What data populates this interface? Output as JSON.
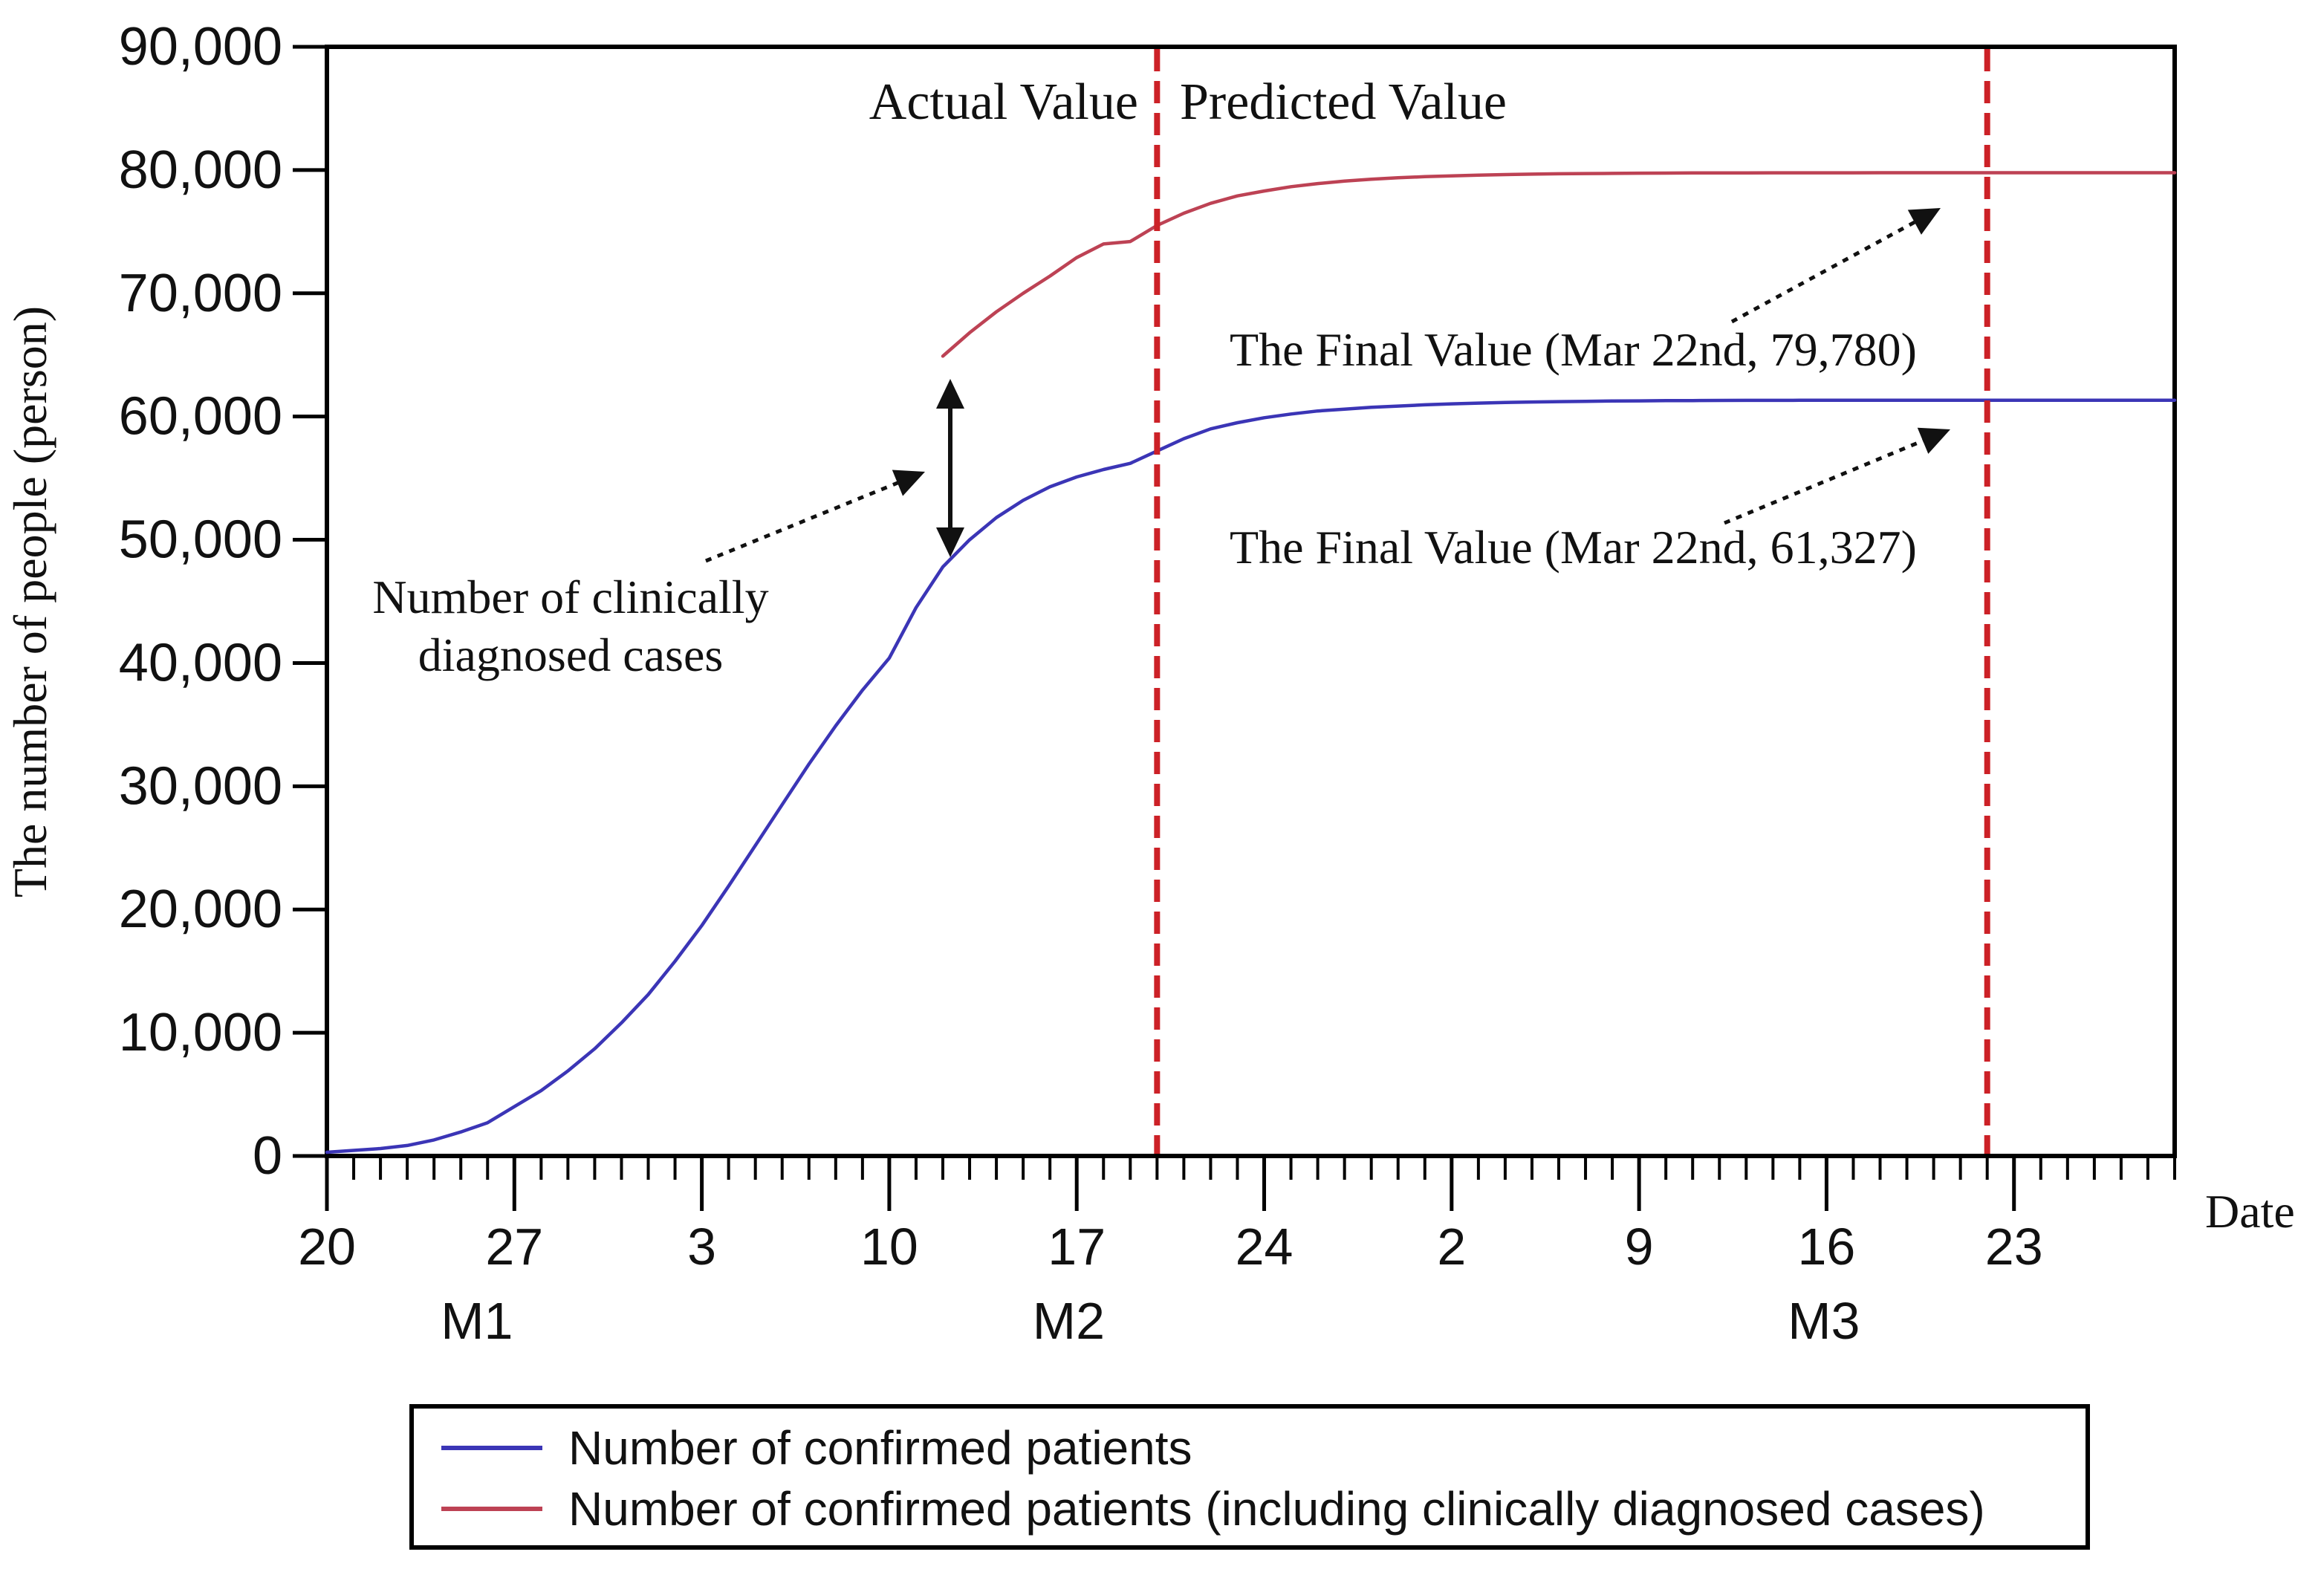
{
  "y_axis": {
    "title": "The number of people (person)",
    "ticks": [
      {
        "value": 0,
        "label": "0"
      },
      {
        "value": 10000,
        "label": "10,000"
      },
      {
        "value": 20000,
        "label": "20,000"
      },
      {
        "value": 30000,
        "label": "30,000"
      },
      {
        "value": 40000,
        "label": "40,000"
      },
      {
        "value": 50000,
        "label": "50,000"
      },
      {
        "value": 60000,
        "label": "60,000"
      },
      {
        "value": 70000,
        "label": "70,000"
      },
      {
        "value": 80000,
        "label": "80,000"
      },
      {
        "value": 90000,
        "label": "90,000"
      }
    ]
  },
  "x_axis": {
    "title": "Date",
    "major_ticks": [
      {
        "day": 0,
        "label": "20"
      },
      {
        "day": 7,
        "label": "27"
      },
      {
        "day": 14,
        "label": "3"
      },
      {
        "day": 21,
        "label": "10"
      },
      {
        "day": 28,
        "label": "17"
      },
      {
        "day": 35,
        "label": "24"
      },
      {
        "day": 42,
        "label": "2"
      },
      {
        "day": 49,
        "label": "9"
      },
      {
        "day": 56,
        "label": "16"
      },
      {
        "day": 63,
        "label": "23"
      }
    ],
    "minor_ticks": {
      "from_day": 0,
      "to_day": 69,
      "step": 1
    },
    "month_labels": [
      {
        "label": "M1",
        "day": 5.6
      },
      {
        "label": "M2",
        "day": 27.7
      },
      {
        "label": "M3",
        "day": 55.9
      }
    ]
  },
  "phase_labels": {
    "left": "Actual Value",
    "right": "Predicted Value"
  },
  "annotations": {
    "clinical_note_line1": "Number of clinically",
    "clinical_note_line2": "diagnosed cases",
    "final_red": "The Final Value (Mar 22nd, 79,780)",
    "final_blue": "The Final Value (Mar 22nd, 61,327)"
  },
  "legend": {
    "items": [
      {
        "label": "Number of confirmed patients",
        "color": "#3b35b6"
      },
      {
        "label": "Number of confirmed patients (including clinically diagnosed cases)",
        "color": "#bd4254"
      }
    ]
  },
  "colors": {
    "confirmed_line": "#3b35b6",
    "including_clinical_line": "#bd4254",
    "divider_dashed": "#cc2127",
    "frame": "#000000"
  },
  "chart_data": {
    "type": "line",
    "title": "",
    "xlabel": "Date",
    "ylabel": "The number of people (person)",
    "ylim": [
      0,
      90000
    ],
    "x_unit": "day index from Jan 20 (day 0) to Mar 29 (day 69); ticks every 7 days",
    "actual_predicted_boundary_day": 31,
    "final_value_day": 62,
    "grid": false,
    "legend_position": "bottom",
    "series": [
      {
        "name": "Number of confirmed patients",
        "color": "#3b35b6",
        "start_day": 0,
        "values": [
          300,
          450,
          600,
          850,
          1300,
          1950,
          2700,
          4000,
          5300,
          6900,
          8700,
          10800,
          13100,
          15800,
          18700,
          21900,
          25200,
          28500,
          31800,
          34900,
          37800,
          40400,
          44500,
          47800,
          50000,
          51800,
          53200,
          54300,
          55100,
          55700,
          56200,
          57200,
          58200,
          59000,
          59500,
          59900,
          60200,
          60450,
          60600,
          60750,
          60850,
          60950,
          61030,
          61090,
          61140,
          61180,
          61210,
          61235,
          61255,
          61270,
          61285,
          61295,
          61305,
          61310,
          61315,
          61318,
          61320,
          61322,
          61324,
          61325,
          61326,
          61327,
          61327,
          61327,
          61327,
          61327,
          61327,
          61327,
          61327,
          61327
        ]
      },
      {
        "name": "Number of confirmed patients (including clinically diagnosed cases)",
        "color": "#bd4254",
        "start_day": 23,
        "values": [
          64900,
          66800,
          68500,
          70000,
          71400,
          72900,
          74000,
          74200,
          75500,
          76500,
          77300,
          77900,
          78300,
          78650,
          78900,
          79100,
          79250,
          79370,
          79460,
          79530,
          79590,
          79630,
          79665,
          79695,
          79715,
          79730,
          79745,
          79755,
          79762,
          79768,
          79772,
          79775,
          79777,
          79778,
          79779,
          79780,
          79780,
          79780,
          79780,
          79780,
          79780,
          79780,
          79780,
          79780,
          79780,
          79780,
          79780
        ]
      }
    ],
    "dividers": [
      {
        "day": 31,
        "meaning": "Actual / Predicted boundary (Feb 20)",
        "color": "#cc2127"
      },
      {
        "day": 62,
        "meaning": "Final value date (Mar 22nd)",
        "color": "#cc2127"
      }
    ]
  }
}
